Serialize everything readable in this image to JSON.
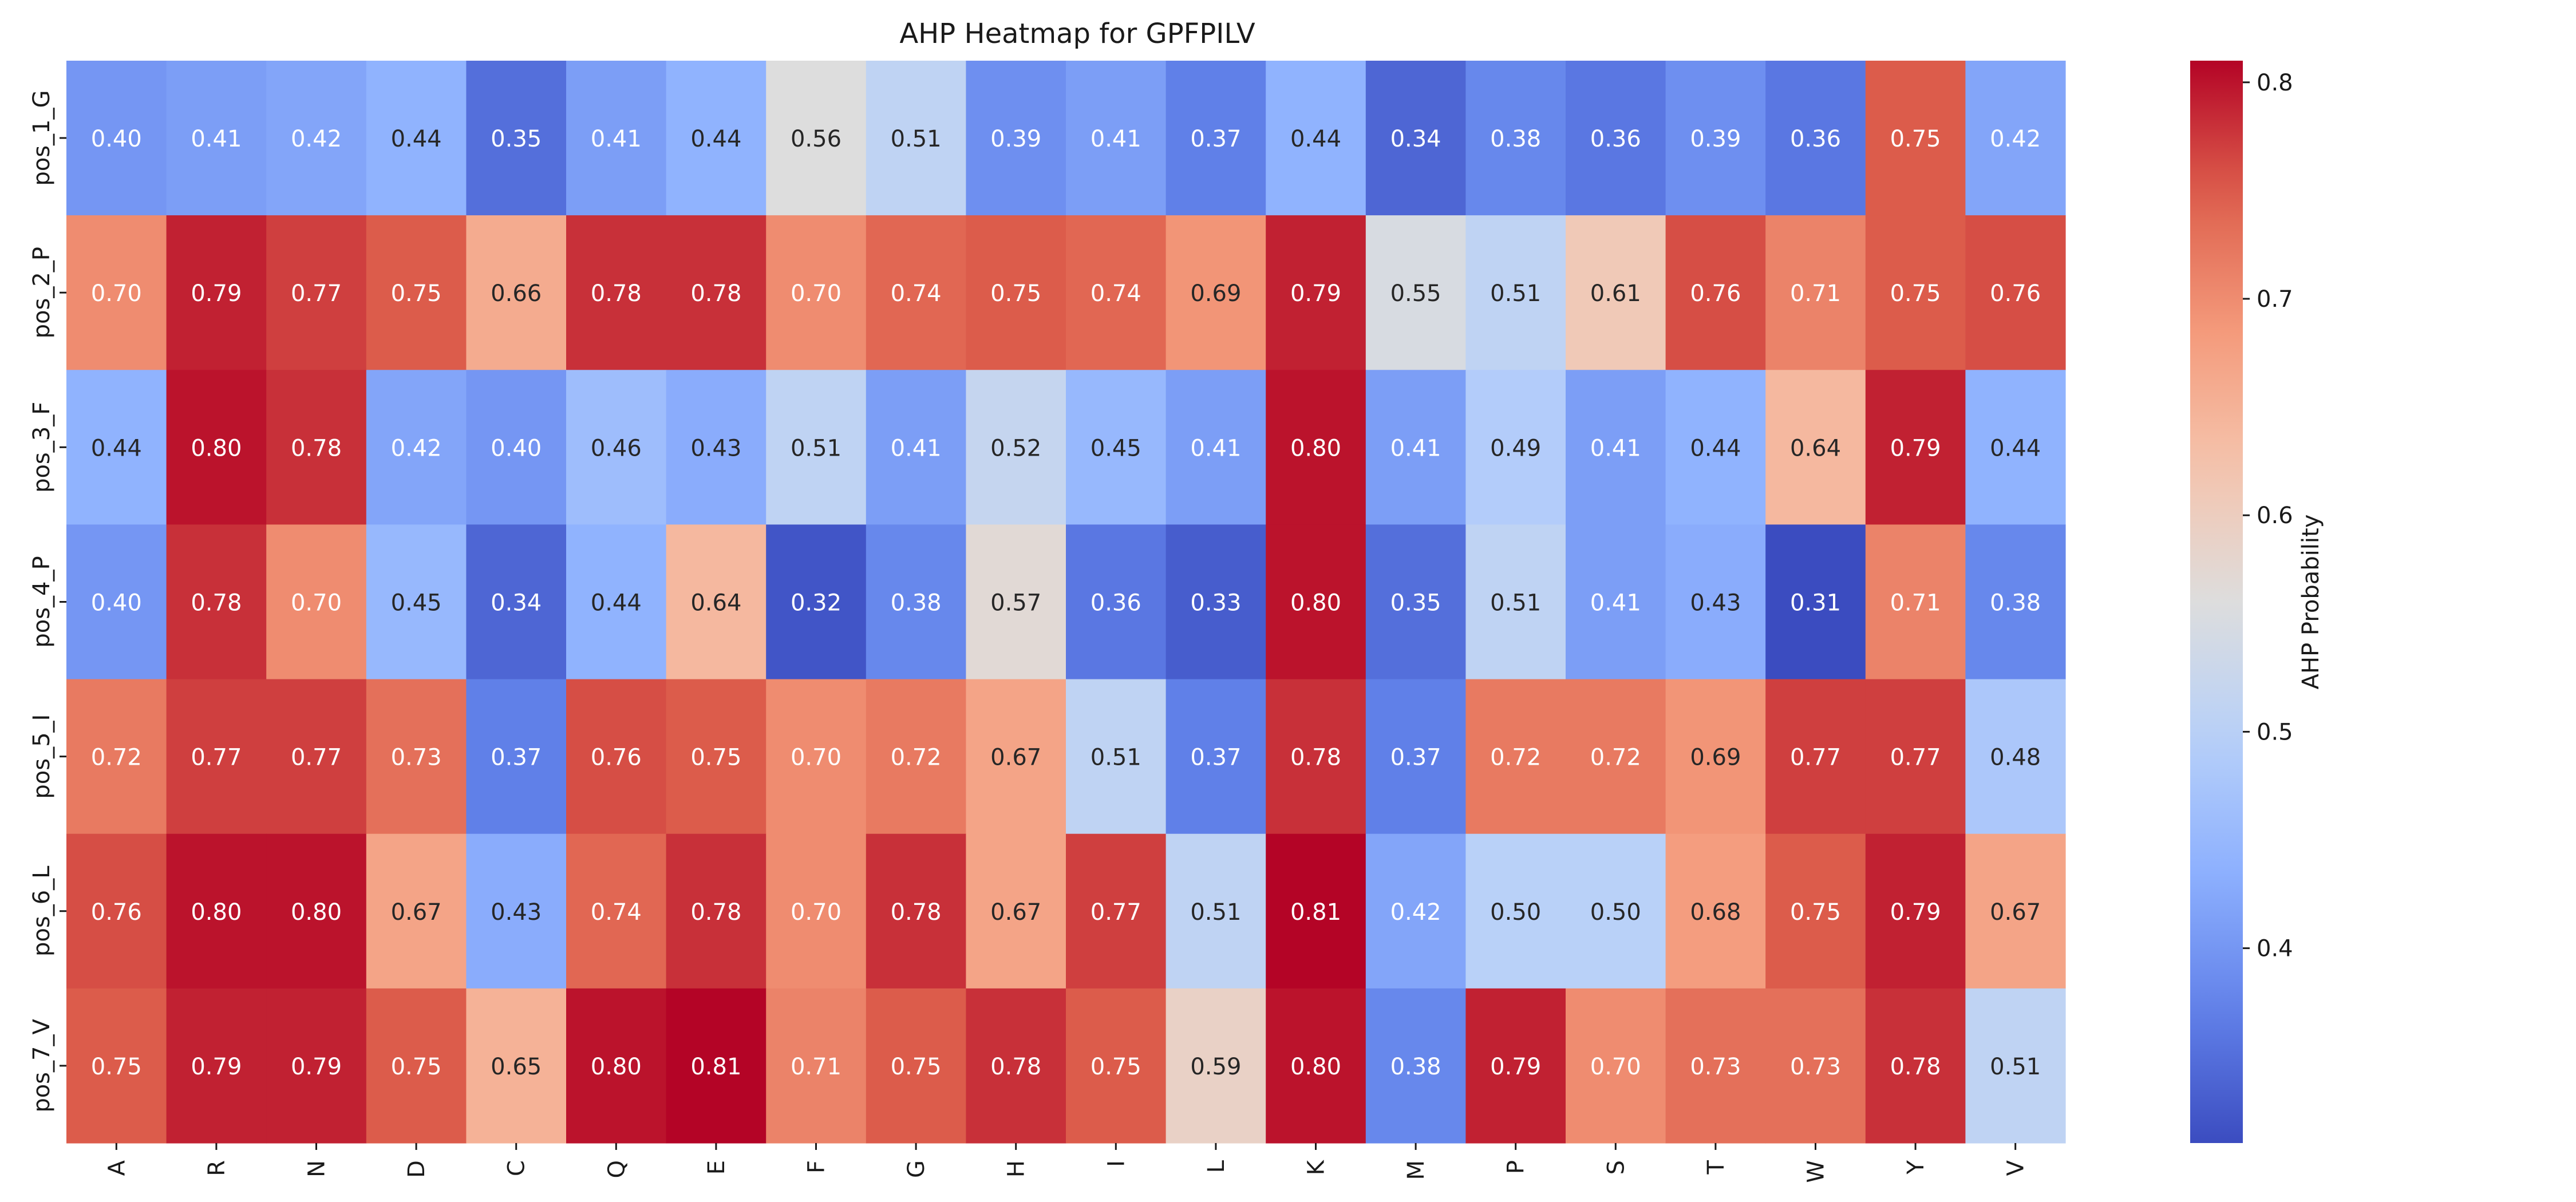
{
  "chart_data": {
    "type": "heatmap",
    "title": "AHP Heatmap for GPFPILV",
    "xlabel": "",
    "ylabel": "",
    "x_categories": [
      "A",
      "R",
      "N",
      "D",
      "C",
      "Q",
      "E",
      "F",
      "G",
      "H",
      "I",
      "L",
      "K",
      "M",
      "P",
      "S",
      "T",
      "W",
      "Y",
      "V"
    ],
    "y_categories": [
      "pos_1_G",
      "pos_2_P",
      "pos_3_F",
      "pos_4_P",
      "pos_5_I",
      "pos_6_L",
      "pos_7_V"
    ],
    "values": [
      [
        0.4,
        0.41,
        0.42,
        0.44,
        0.35,
        0.41,
        0.44,
        0.56,
        0.51,
        0.39,
        0.41,
        0.37,
        0.44,
        0.34,
        0.38,
        0.36,
        0.39,
        0.36,
        0.75,
        0.42
      ],
      [
        0.7,
        0.79,
        0.77,
        0.75,
        0.66,
        0.78,
        0.78,
        0.7,
        0.74,
        0.75,
        0.74,
        0.69,
        0.79,
        0.55,
        0.51,
        0.61,
        0.76,
        0.71,
        0.75,
        0.76
      ],
      [
        0.44,
        0.8,
        0.78,
        0.42,
        0.4,
        0.46,
        0.43,
        0.51,
        0.41,
        0.52,
        0.45,
        0.41,
        0.8,
        0.41,
        0.49,
        0.41,
        0.44,
        0.64,
        0.79,
        0.44
      ],
      [
        0.4,
        0.78,
        0.7,
        0.45,
        0.34,
        0.44,
        0.64,
        0.32,
        0.38,
        0.57,
        0.36,
        0.33,
        0.8,
        0.35,
        0.51,
        0.41,
        0.43,
        0.31,
        0.71,
        0.38
      ],
      [
        0.72,
        0.77,
        0.77,
        0.73,
        0.37,
        0.76,
        0.75,
        0.7,
        0.72,
        0.67,
        0.51,
        0.37,
        0.78,
        0.37,
        0.72,
        0.72,
        0.69,
        0.77,
        0.77,
        0.48
      ],
      [
        0.76,
        0.8,
        0.8,
        0.67,
        0.43,
        0.74,
        0.78,
        0.7,
        0.78,
        0.67,
        0.77,
        0.51,
        0.81,
        0.42,
        0.5,
        0.5,
        0.68,
        0.75,
        0.79,
        0.67
      ],
      [
        0.75,
        0.79,
        0.79,
        0.75,
        0.65,
        0.8,
        0.81,
        0.71,
        0.75,
        0.78,
        0.75,
        0.59,
        0.8,
        0.38,
        0.79,
        0.7,
        0.73,
        0.73,
        0.78,
        0.51
      ]
    ],
    "value_format": "0.00",
    "colormap": "coolwarm",
    "vmin": 0.31,
    "vmax": 0.81,
    "colorbar": {
      "label": "AHP Probability",
      "ticks": [
        0.4,
        0.5,
        0.6,
        0.7,
        0.8
      ],
      "tick_labels": [
        "0.4",
        "0.5",
        "0.6",
        "0.7",
        "0.8"
      ]
    }
  }
}
